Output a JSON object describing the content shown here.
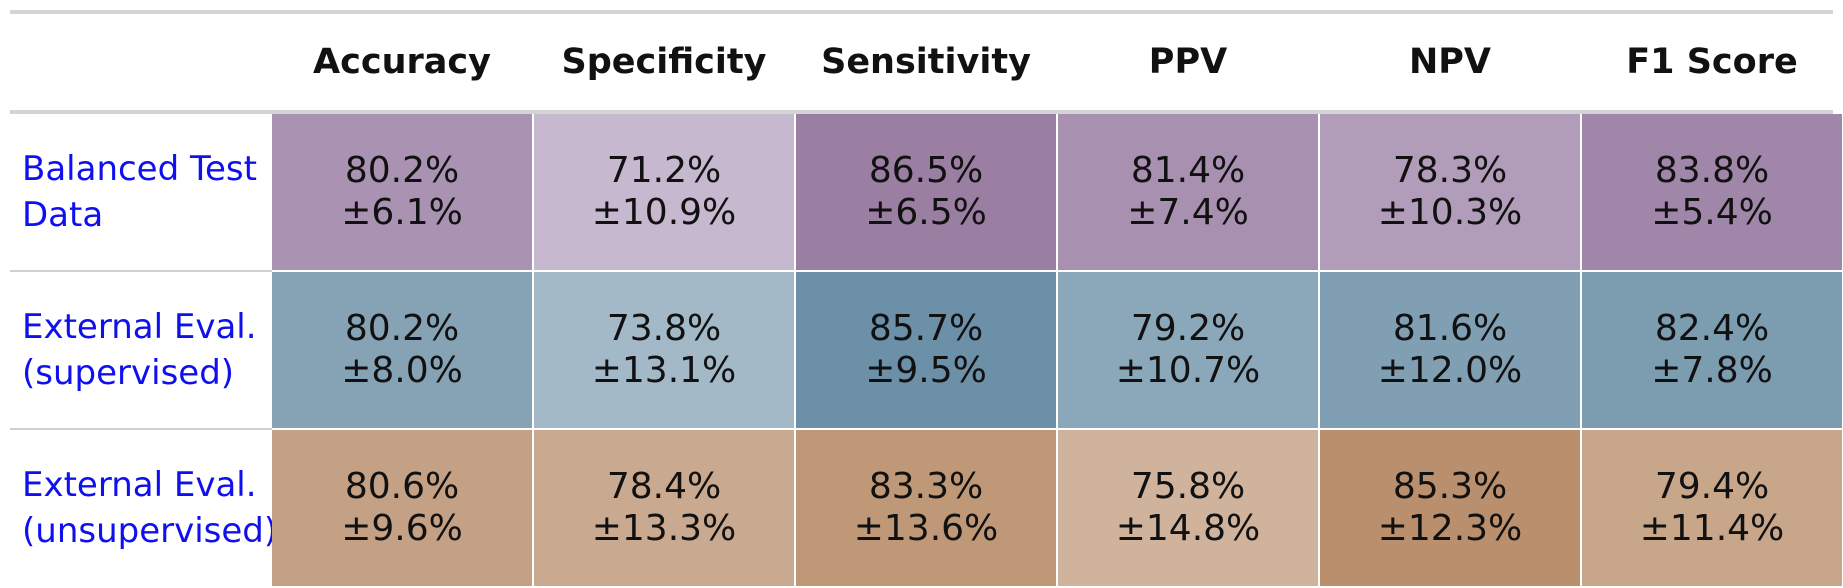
{
  "chart_data": {
    "type": "table",
    "columns": [
      "Accuracy",
      "Specificity",
      "Sensitivity",
      "PPV",
      "NPV",
      "F1 Score"
    ],
    "rows": [
      {
        "label_lines": [
          "Balanced Test",
          "Data"
        ],
        "base_color": "#94769e",
        "cells": [
          {
            "mean": "80.2%",
            "sd": "±6.1%",
            "color": "#aa92b2"
          },
          {
            "mean": "71.2%",
            "sd": "±10.9%",
            "color": "#c6b8ce"
          },
          {
            "mean": "86.5%",
            "sd": "±6.5%",
            "color": "#9a7fa3"
          },
          {
            "mean": "81.4%",
            "sd": "±7.4%",
            "color": "#a890b0"
          },
          {
            "mean": "78.3%",
            "sd": "±10.3%",
            "color": "#b19cb9"
          },
          {
            "mean": "83.8%",
            "sd": "±5.4%",
            "color": "#a086a9"
          }
        ]
      },
      {
        "label_lines": [
          "External Eval.",
          "(supervised)"
        ],
        "base_color": "#6b8fa8",
        "cells": [
          {
            "mean": "80.2%",
            "sd": "±8.0%",
            "color": "#86a3b6"
          },
          {
            "mean": "73.8%",
            "sd": "±13.1%",
            "color": "#a4b9c8"
          },
          {
            "mean": "85.7%",
            "sd": "±9.5%",
            "color": "#6c90a8"
          },
          {
            "mean": "79.2%",
            "sd": "±10.7%",
            "color": "#8ba8bb"
          },
          {
            "mean": "81.6%",
            "sd": "±12.0%",
            "color": "#809fb3"
          },
          {
            "mean": "82.4%",
            "sd": "±7.8%",
            "color": "#7c9cb0"
          }
        ]
      },
      {
        "label_lines": [
          "External Eval.",
          "(unsupervised)"
        ],
        "base_color": "#bb9170",
        "cells": [
          {
            "mean": "80.6%",
            "sd": "±9.6%",
            "color": "#c4a084"
          },
          {
            "mean": "78.4%",
            "sd": "±13.3%",
            "color": "#c9a98f"
          },
          {
            "mean": "83.3%",
            "sd": "±13.6%",
            "color": "#bf9977"
          },
          {
            "mean": "75.8%",
            "sd": "±14.8%",
            "color": "#d0b39c"
          },
          {
            "mean": "85.3%",
            "sd": "±12.3%",
            "color": "#b98f6e"
          },
          {
            "mean": "79.4%",
            "sd": "±11.4%",
            "color": "#c7a68a"
          }
        ]
      }
    ],
    "colors": {
      "row_label_text": "#1010ee",
      "header_rule": "#d4d4d4"
    }
  }
}
